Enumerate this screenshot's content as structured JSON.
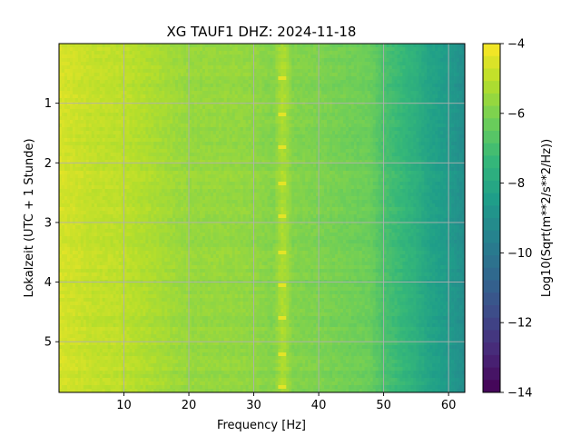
{
  "chart_data": {
    "type": "heatmap",
    "title": "XG TAUF1  DHZ: 2024-11-18",
    "xlabel": "Frequency [Hz]",
    "ylabel": "Lokalzeit (UTC + 1 Stunde)",
    "colorbar_label": "Log10(Sqrt(m**2/s**2/Hz))",
    "xlim": [
      0,
      62.5
    ],
    "ylim": [
      5.85,
      0
    ],
    "x_ticks": [
      "10",
      "20",
      "30",
      "40",
      "50",
      "60"
    ],
    "x_tick_values": [
      10,
      20,
      30,
      40,
      50,
      60
    ],
    "y_ticks": [
      "1",
      "2",
      "3",
      "4",
      "5"
    ],
    "y_tick_values": [
      1,
      2,
      3,
      4,
      5
    ],
    "color_range": [
      -14,
      -4
    ],
    "colorbar_ticks": [
      "−4",
      "−6",
      "−8",
      "−10",
      "−12",
      "−14"
    ],
    "colorbar_tick_values": [
      -4,
      -6,
      -8,
      -10,
      -12,
      -14
    ],
    "colormap": "viridis",
    "grid": true,
    "spectral_profile": {
      "frequency_hz": [
        0,
        5,
        10,
        15,
        20,
        25,
        30,
        33,
        34.5,
        36,
        40,
        45,
        48,
        50,
        52,
        55,
        57,
        60,
        62.5
      ],
      "log10_amplitude": [
        -4.6,
        -4.9,
        -5.0,
        -5.3,
        -5.6,
        -5.6,
        -5.7,
        -5.9,
        -5.2,
        -5.9,
        -6.0,
        -6.2,
        -6.3,
        -6.9,
        -7.2,
        -7.7,
        -8.2,
        -8.6,
        -9.1
      ]
    },
    "peak_frequency_hz": 34.5,
    "peak_times_h": [
      0.6,
      1.2,
      1.75,
      2.35,
      2.9,
      3.5,
      4.05,
      4.6,
      5.2,
      5.75
    ]
  }
}
